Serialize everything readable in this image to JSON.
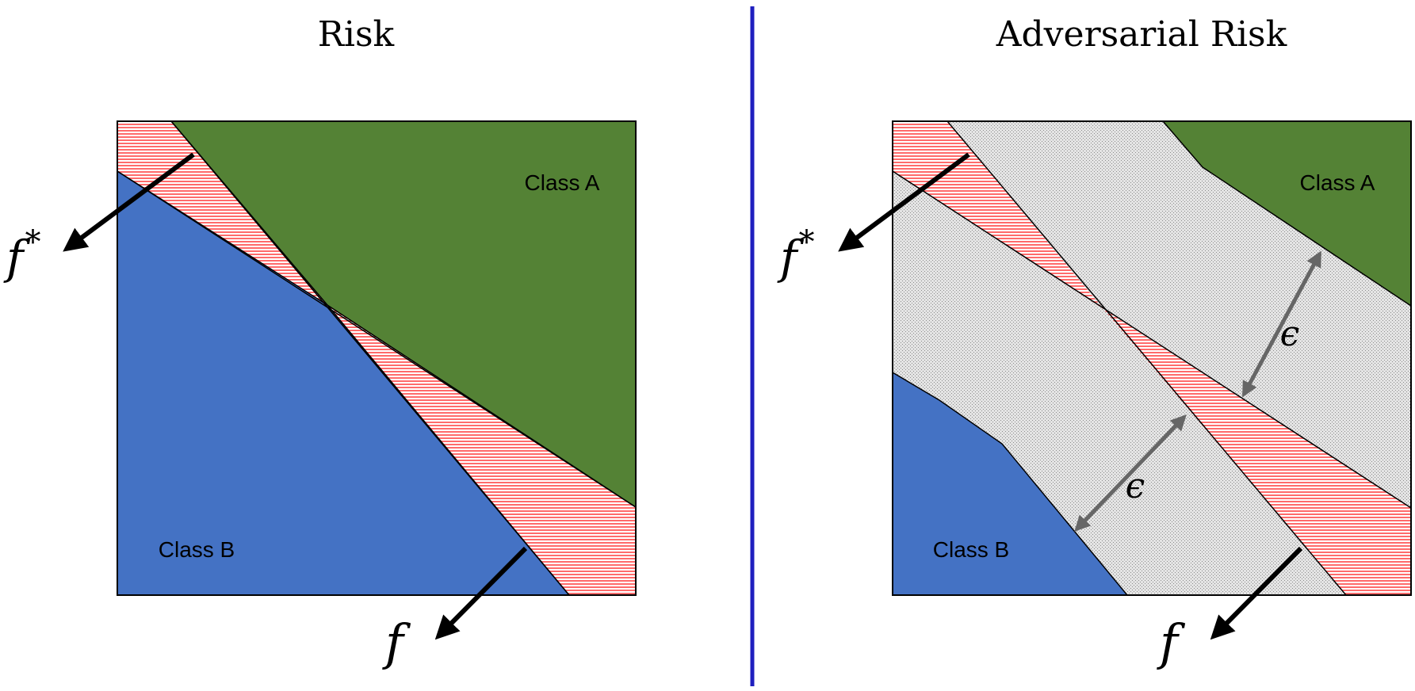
{
  "left_panel": {
    "title": "Risk",
    "class_a_label": "Class A",
    "class_b_label": "Class B",
    "f_star_label": "f",
    "f_star_sup": "*",
    "f_label": "f"
  },
  "right_panel": {
    "title": "Adversarial Risk",
    "class_a_label": "Class A",
    "class_b_label": "Class B",
    "f_star_label": "f",
    "f_star_sup": "*",
    "f_label": "f",
    "epsilon_upper": "ϵ",
    "epsilon_lower": "ϵ"
  },
  "colors": {
    "class_a": "#548235",
    "class_b": "#4472c4",
    "error_stripe": "#ff7c80",
    "adversarial_region": "#d9d9d9",
    "divider": "#1f1fbf",
    "epsilon_arrow": "#666666"
  }
}
